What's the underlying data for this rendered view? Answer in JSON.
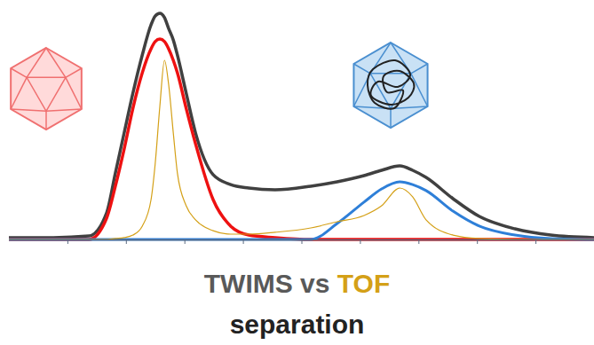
{
  "chart_data": {
    "type": "line",
    "title": "TWIMS vs TOF",
    "subtitle": "separation",
    "x": [
      0,
      7.6,
      13.7,
      16.7,
      18.2,
      19.7,
      21.2,
      22.8,
      24.3,
      25.0,
      25.8,
      26.6,
      27.3,
      28.1,
      28.8,
      30.3,
      31.9,
      34.9,
      37.9,
      41.0,
      45.5,
      51.6,
      56.1,
      60.7,
      63.7,
      66.8,
      69.0,
      71.3,
      75.9,
      80.4,
      86.5,
      92.6,
      100
    ],
    "series": [
      {
        "color": "#404040",
        "values": [
          0.8,
          0.8,
          1.5,
          11.5,
          28.8,
          46.2,
          63.5,
          80,
          93.1,
          96.9,
          98.1,
          96.2,
          91.5,
          86.5,
          80,
          63.5,
          46.2,
          28.1,
          23.8,
          22.3,
          21.5,
          23.1,
          25,
          27.7,
          30,
          31.9,
          30,
          26.9,
          17.7,
          10,
          4.6,
          1.9,
          0.8
        ]
      },
      {
        "color": "#ee1111",
        "values": [
          0,
          0,
          0,
          9.2,
          23.1,
          39.2,
          56.9,
          72.3,
          82.7,
          85.8,
          86.9,
          85.8,
          82.7,
          77.7,
          72.3,
          56.9,
          41.5,
          17.3,
          5.8,
          1.9,
          0.8,
          0,
          0,
          0,
          0,
          0,
          0,
          0,
          0,
          0,
          0,
          0,
          0
        ]
      },
      {
        "color": "#2e7fd8",
        "values": [
          0,
          0,
          0,
          0,
          0,
          0,
          0,
          0,
          0,
          0,
          0,
          0,
          0,
          0,
          0,
          0,
          0,
          0,
          0,
          0,
          0,
          0,
          6.9,
          16.2,
          21.9,
          25,
          23.8,
          21.2,
          12.3,
          5.8,
          1.9,
          0.4,
          0
        ]
      },
      {
        "color": "#d4a017",
        "values": [
          0,
          0,
          0,
          0,
          0.4,
          0.8,
          1.9,
          5.8,
          17.3,
          32.7,
          57.7,
          77.7,
          67.3,
          46.2,
          28.8,
          14.6,
          8.5,
          3.8,
          2.3,
          2.3,
          3.1,
          5,
          7.7,
          10.4,
          14.6,
          22.3,
          18.5,
          8.5,
          1.9,
          0.4,
          0,
          0,
          0
        ]
      }
    ],
    "xlim": [
      0,
      100
    ],
    "xticks": [
      10,
      20,
      30,
      40,
      50,
      60,
      70,
      80,
      90
    ],
    "ylim": [
      0,
      100
    ],
    "tick_labels": false
  }
}
